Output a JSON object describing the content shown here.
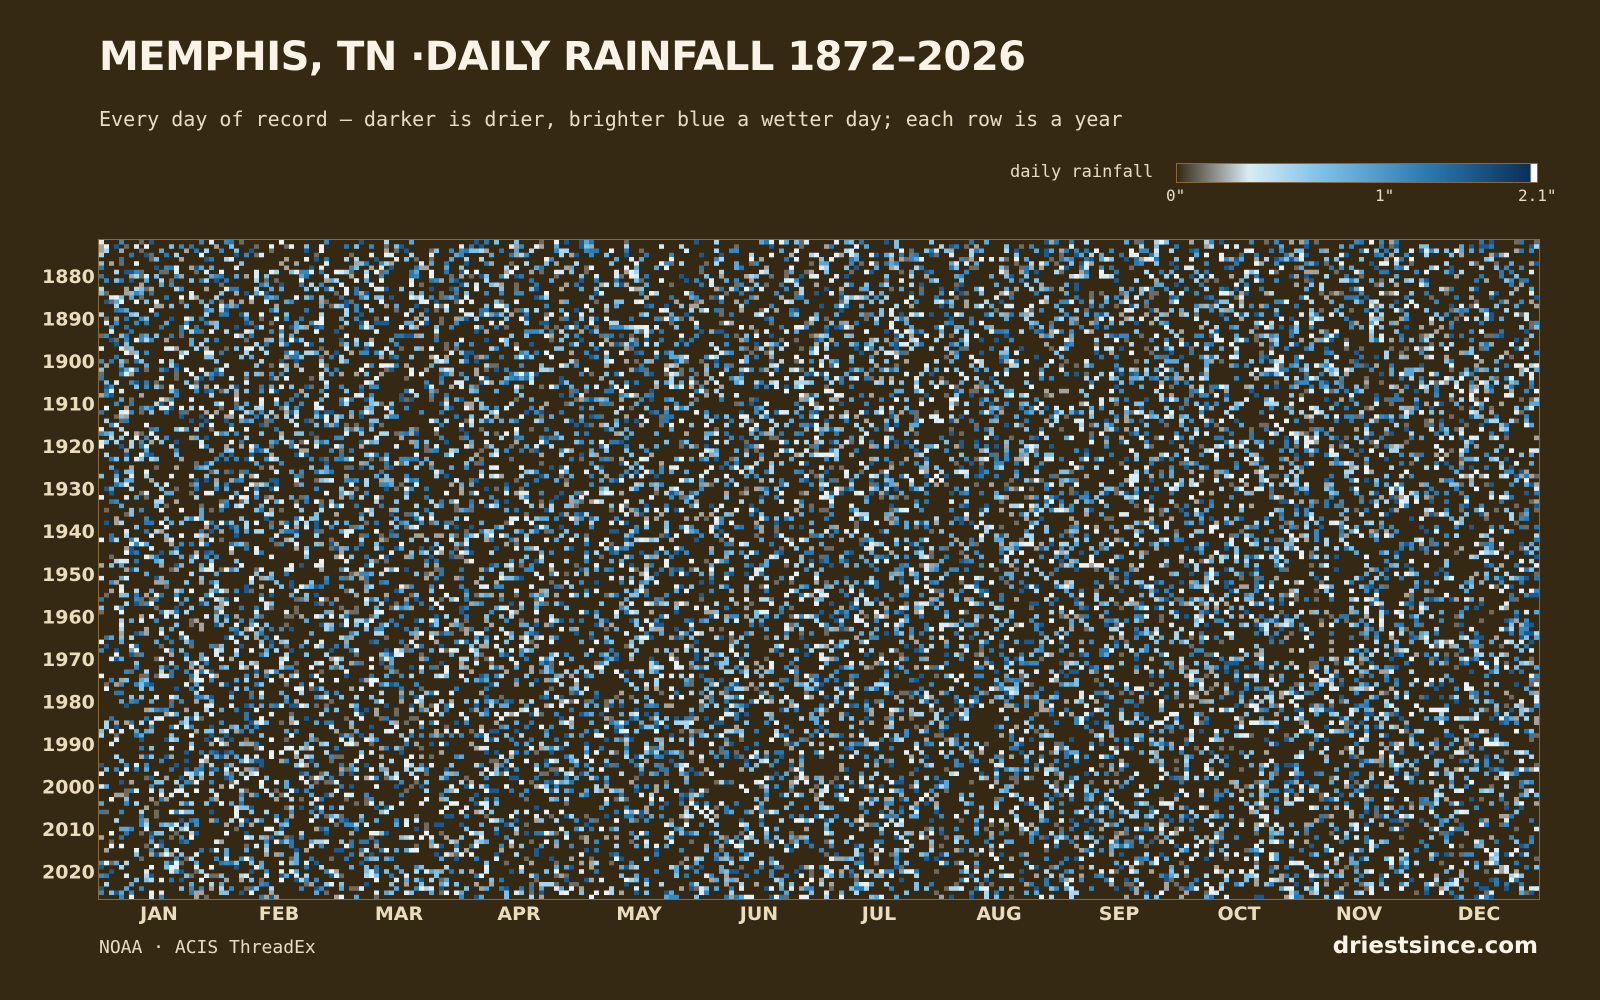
{
  "header": {
    "title": "MEMPHIS, TN ·DAILY RAINFALL 1872–2026",
    "subtitle": "Every day of record — darker is drier, brighter blue a wetter day; each row is a year"
  },
  "legend": {
    "label": "daily rainfall",
    "ticks": [
      "0\"",
      "1\"",
      "2.1\""
    ],
    "colors": [
      "#352914",
      "#d9ecf5",
      "#7fc0e6",
      "#2a78b0",
      "#0c2f57",
      "#ffffff"
    ]
  },
  "chart_data": {
    "type": "heatmap",
    "title": "MEMPHIS, TN ·DAILY RAINFALL 1872–2026",
    "x_axis": {
      "categories": [
        "JAN",
        "FEB",
        "MAR",
        "APR",
        "MAY",
        "JUN",
        "JUL",
        "AUG",
        "SEP",
        "OCT",
        "NOV",
        "DEC"
      ],
      "unit": "day of year"
    },
    "y_axis": {
      "range": [
        1872,
        2026
      ],
      "tick_labels": [
        "1880",
        "1890",
        "1900",
        "1910",
        "1920",
        "1930",
        "1940",
        "1950",
        "1960",
        "1970",
        "1980",
        "1990",
        "2000",
        "2010",
        "2020"
      ]
    },
    "color_scale": {
      "label": "daily rainfall",
      "min": 0,
      "max": 2.1,
      "unit": "inches"
    },
    "cells": "one cell per day per year (1872–2026); individual daily values not legible in image"
  },
  "footer": {
    "source": "NOAA · ACIS ThreadEx",
    "brand": "driestsince.com"
  }
}
